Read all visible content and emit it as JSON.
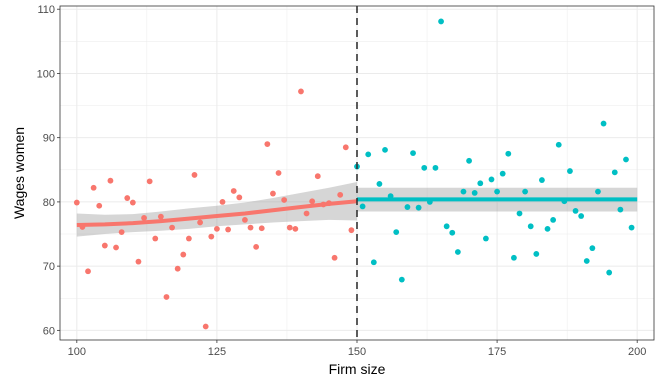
{
  "chart_data": {
    "type": "scatter",
    "title": "",
    "xlabel": "Firm size",
    "ylabel": "Wages women",
    "xlim": [
      97,
      203
    ],
    "ylim": [
      58.5,
      110.5
    ],
    "x_ticks": [
      100,
      125,
      150,
      175,
      200
    ],
    "x_tick_labels": [
      "100",
      "125",
      "150",
      "175",
      "200"
    ],
    "y_ticks": [
      60,
      70,
      80,
      90,
      100,
      110
    ],
    "y_tick_labels": [
      "60",
      "70",
      "80",
      "90",
      "100",
      "110"
    ],
    "grid": true,
    "cutoff": 150,
    "cutoff_style": "dashed",
    "colors": {
      "left": "#F8766D",
      "right": "#00BFC4",
      "band": "#999999",
      "cutoff": "#333333",
      "grid": "#ebebeb",
      "panel_border": "#333333"
    },
    "series": [
      {
        "points": [
          [
            100,
            79.9
          ],
          [
            101,
            76.1
          ],
          [
            102,
            69.2
          ],
          [
            103,
            82.2
          ],
          [
            104,
            79.4
          ],
          [
            105,
            73.2
          ],
          [
            106,
            83.3
          ],
          [
            107,
            72.9
          ],
          [
            108,
            75.3
          ],
          [
            109,
            80.6
          ],
          [
            110,
            79.9
          ],
          [
            111,
            70.7
          ],
          [
            112,
            77.5
          ],
          [
            113,
            83.2
          ],
          [
            114,
            74.3
          ],
          [
            115,
            77.7
          ],
          [
            116,
            65.2
          ],
          [
            117,
            76.0
          ],
          [
            118,
            69.6
          ],
          [
            119,
            71.8
          ],
          [
            120,
            74.3
          ],
          [
            121,
            84.2
          ],
          [
            122,
            76.8
          ],
          [
            123,
            60.6
          ],
          [
            124,
            74.6
          ],
          [
            125,
            75.8
          ],
          [
            126,
            80.0
          ],
          [
            127,
            75.7
          ],
          [
            128,
            81.7
          ],
          [
            129,
            80.7
          ],
          [
            130,
            77.2
          ],
          [
            131,
            76.0
          ],
          [
            132,
            73.0
          ],
          [
            133,
            75.9
          ],
          [
            134,
            89.0
          ],
          [
            135,
            81.3
          ],
          [
            136,
            84.5
          ],
          [
            137,
            80.3
          ],
          [
            138,
            76.0
          ],
          [
            139,
            75.8
          ],
          [
            140,
            97.2
          ],
          [
            141,
            78.2
          ],
          [
            142,
            80.1
          ],
          [
            143,
            84.0
          ],
          [
            144,
            79.6
          ],
          [
            145,
            79.8
          ],
          [
            146,
            71.3
          ],
          [
            147,
            81.1
          ],
          [
            148,
            88.5
          ],
          [
            149,
            75.6
          ]
        ],
        "fit": {
          "x": [
            100,
            105,
            110,
            115,
            120,
            125,
            130,
            135,
            140,
            145,
            150
          ],
          "y": [
            76.4,
            76.5,
            76.7,
            77.0,
            77.4,
            77.8,
            78.2,
            78.7,
            79.2,
            79.7,
            80.1
          ],
          "lower": [
            74.6,
            75.0,
            75.3,
            75.5,
            75.8,
            76.2,
            76.5,
            76.8,
            77.0,
            77.2,
            77.1
          ],
          "upper": [
            78.2,
            78.0,
            78.1,
            78.5,
            79.0,
            79.4,
            79.9,
            80.6,
            81.4,
            82.2,
            83.1
          ]
        }
      },
      {
        "points": [
          [
            150,
            85.5
          ],
          [
            151,
            79.3
          ],
          [
            152,
            87.4
          ],
          [
            153,
            70.6
          ],
          [
            154,
            82.8
          ],
          [
            155,
            88.1
          ],
          [
            156,
            80.9
          ],
          [
            157,
            75.3
          ],
          [
            158,
            67.9
          ],
          [
            159,
            79.2
          ],
          [
            160,
            87.6
          ],
          [
            161,
            79.1
          ],
          [
            162,
            85.3
          ],
          [
            163,
            80.0
          ],
          [
            164,
            85.3
          ],
          [
            165,
            108.1
          ],
          [
            166,
            76.2
          ],
          [
            167,
            75.2
          ],
          [
            168,
            72.2
          ],
          [
            169,
            81.6
          ],
          [
            170,
            86.4
          ],
          [
            171,
            81.4
          ],
          [
            172,
            82.9
          ],
          [
            173,
            74.3
          ],
          [
            174,
            83.5
          ],
          [
            175,
            81.6
          ],
          [
            176,
            84.4
          ],
          [
            177,
            87.5
          ],
          [
            178,
            71.3
          ],
          [
            179,
            78.2
          ],
          [
            180,
            81.6
          ],
          [
            181,
            76.2
          ],
          [
            182,
            71.9
          ],
          [
            183,
            83.4
          ],
          [
            184,
            75.8
          ],
          [
            185,
            77.2
          ],
          [
            186,
            88.9
          ],
          [
            187,
            80.1
          ],
          [
            188,
            84.8
          ],
          [
            189,
            78.6
          ],
          [
            190,
            77.8
          ],
          [
            191,
            70.8
          ],
          [
            192,
            72.8
          ],
          [
            193,
            81.6
          ],
          [
            194,
            92.2
          ],
          [
            195,
            69.0
          ],
          [
            196,
            84.6
          ],
          [
            197,
            78.8
          ],
          [
            198,
            86.6
          ],
          [
            199,
            76.0
          ]
        ],
        "fit": {
          "x": [
            150,
            200
          ],
          "y": [
            80.4,
            80.4
          ],
          "lower": [
            78.5,
            78.5
          ],
          "upper": [
            82.2,
            82.2
          ]
        }
      }
    ]
  }
}
